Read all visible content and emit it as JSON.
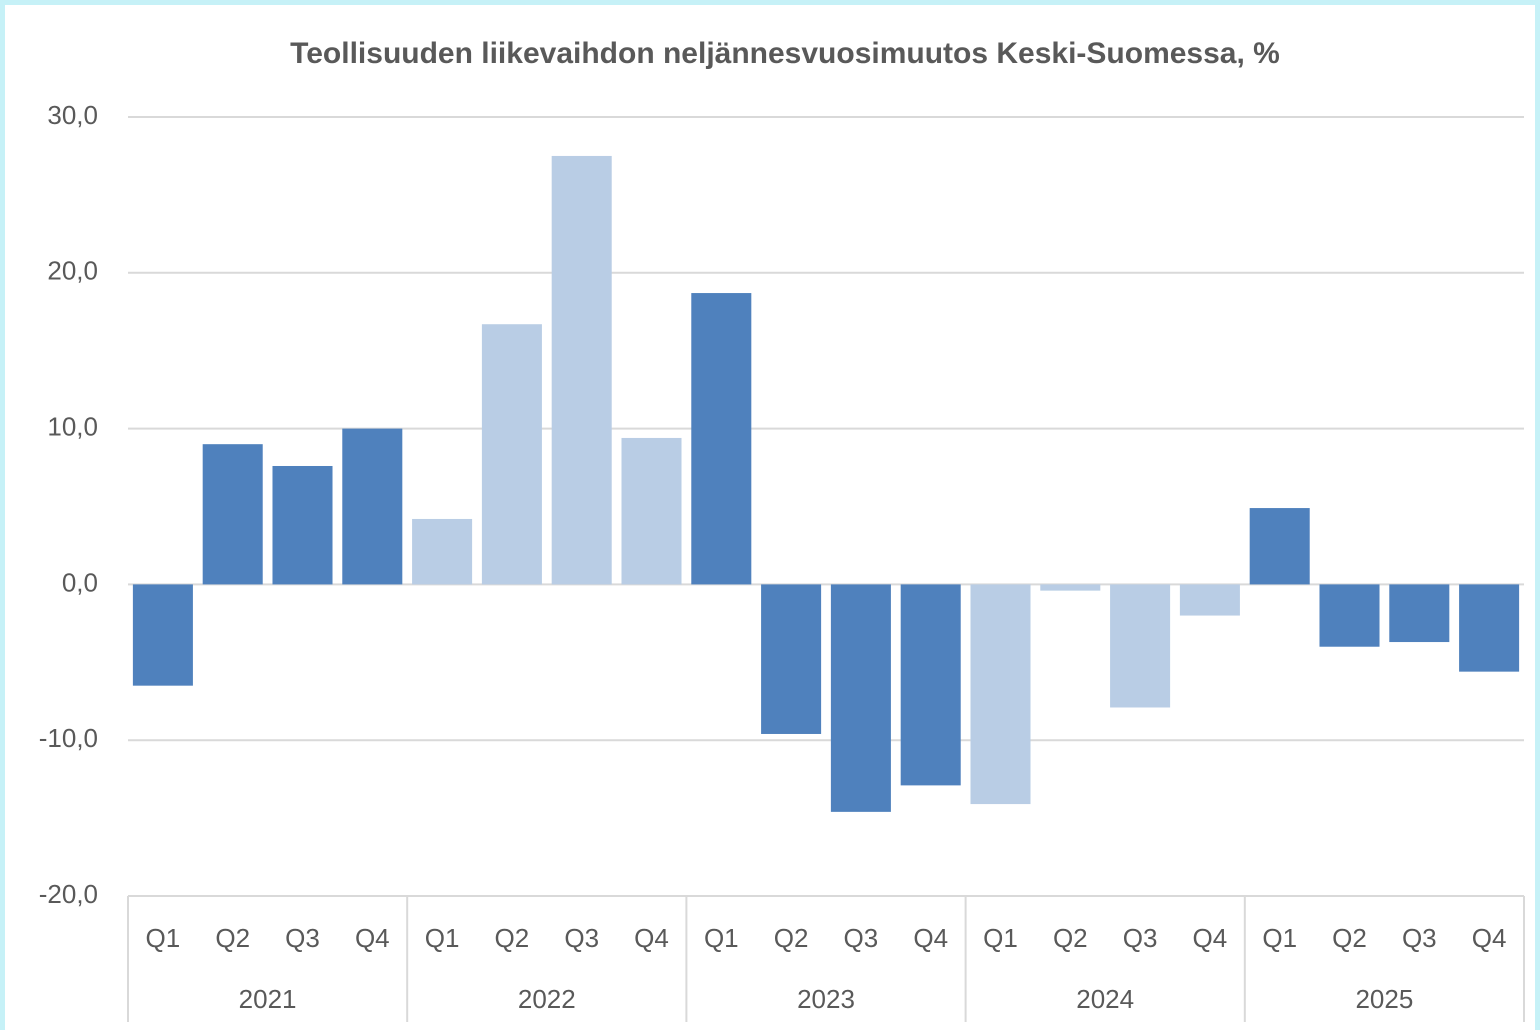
{
  "chart_data": {
    "type": "bar",
    "title": "Teollisuuden liikevaihdon neljännesvuosimuutos Keski-Suomessa, %",
    "categories": [
      "Q1",
      "Q2",
      "Q3",
      "Q4",
      "Q1",
      "Q2",
      "Q3",
      "Q4",
      "Q1",
      "Q2",
      "Q3",
      "Q4",
      "Q1",
      "Q2",
      "Q3",
      "Q4",
      "Q1",
      "Q2",
      "Q3",
      "Q4"
    ],
    "groups": [
      "2021",
      "2022",
      "2023",
      "2024",
      "2025"
    ],
    "values": [
      -6.5,
      9.0,
      7.6,
      10.0,
      4.2,
      16.7,
      27.5,
      9.4,
      18.7,
      -9.6,
      -14.6,
      -12.9,
      -14.1,
      -0.4,
      -7.9,
      -2.0,
      4.9,
      -4.0,
      -3.7,
      -5.6
    ],
    "colors": [
      "#4f81bd",
      "#4f81bd",
      "#4f81bd",
      "#4f81bd",
      "#b9cde5",
      "#b9cde5",
      "#b9cde5",
      "#b9cde5",
      "#4f81bd",
      "#4f81bd",
      "#4f81bd",
      "#4f81bd",
      "#b9cde5",
      "#b9cde5",
      "#b9cde5",
      "#b9cde5",
      "#4f81bd",
      "#4f81bd",
      "#4f81bd",
      "#4f81bd"
    ],
    "ylim": [
      -20,
      30
    ],
    "yticks": [
      {
        "value": -20,
        "label": "-20,0"
      },
      {
        "value": -10,
        "label": "-10,0"
      },
      {
        "value": 0,
        "label": "0,0"
      },
      {
        "value": 10,
        "label": "10,0"
      },
      {
        "value": 20,
        "label": "20,0"
      },
      {
        "value": 30,
        "label": "30,0"
      }
    ],
    "grid": true
  }
}
